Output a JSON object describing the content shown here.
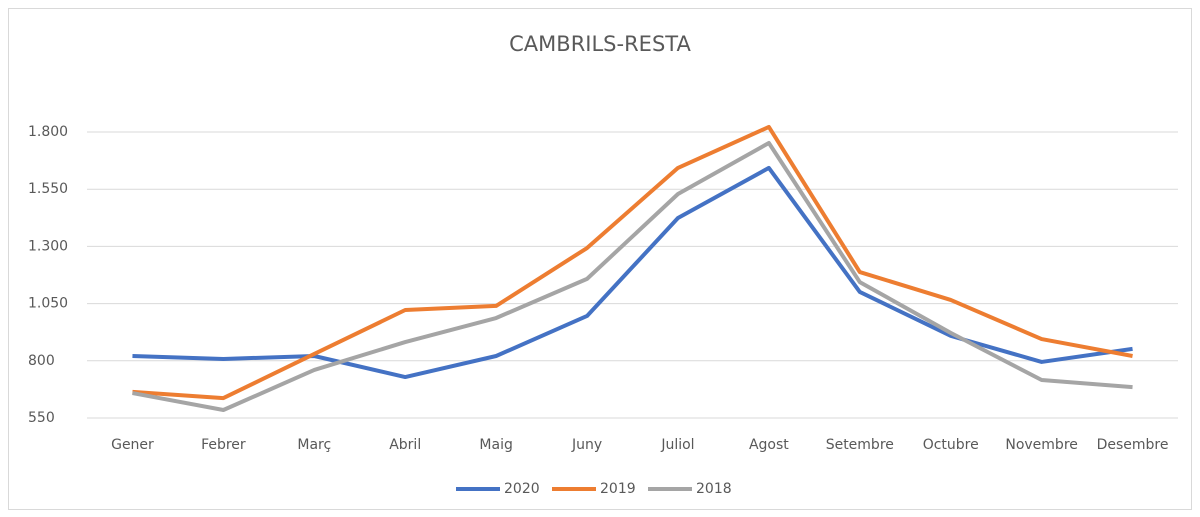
{
  "chart_data": {
    "type": "line",
    "title": "CAMBRILS-RESTA",
    "categories": [
      "Gener",
      "Febrer",
      "Març",
      "Abril",
      "Maig",
      "Juny",
      "Juliol",
      "Agost",
      "Setembre",
      "Octubre",
      "Novembre",
      "Desembre"
    ],
    "series": [
      {
        "name": "2020",
        "color": "#4472c4",
        "values": [
          821,
          808,
          821,
          729,
          821,
          996,
          1424,
          1643,
          1101,
          909,
          795,
          852
        ]
      },
      {
        "name": "2019",
        "color": "#ed7d31",
        "values": [
          664,
          637,
          830,
          1022,
          1040,
          1293,
          1643,
          1822,
          1188,
          1066,
          895,
          821
        ]
      },
      {
        "name": "2018",
        "color": "#a5a5a5",
        "values": [
          659,
          585,
          760,
          882,
          987,
          1158,
          1529,
          1752,
          1144,
          922,
          716,
          685
        ]
      }
    ],
    "ylim": [
      550,
      1800
    ],
    "yticks": [
      550,
      800,
      {
        "value": 1050,
        "label": "1.050"
      },
      {
        "value": 1300,
        "label": "1.300"
      },
      {
        "value": 1550,
        "label": "1.550"
      },
      {
        "value": 1800,
        "label": "1.800"
      }
    ],
    "grid": true,
    "legend": "bottom"
  }
}
